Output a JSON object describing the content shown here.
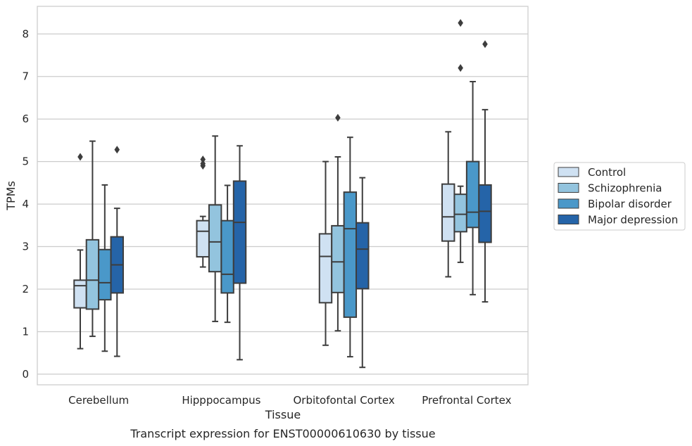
{
  "chart_data": {
    "type": "box",
    "xlabel": "Tissue",
    "ylabel": "TPMs",
    "caption": "Transcript expression for ENST00000610630 by tissue",
    "ylim": [
      -0.25,
      8.65
    ],
    "yticks": [
      "0",
      "1",
      "2",
      "3",
      "4",
      "5",
      "6",
      "7",
      "8"
    ],
    "grid": "horizontal",
    "legend_position": "right",
    "categories": [
      "Cerebellum",
      "Hipppocampus",
      "Orbitofontal Cortex",
      "Prefrontal Cortex"
    ],
    "series": [
      {
        "name": "Control",
        "color": "#cfe1f2",
        "boxes": [
          {
            "whisker_low": 0.6,
            "q1": 1.56,
            "median": 2.08,
            "q3": 2.21,
            "whisker_high": 2.92,
            "outliers": [
              5.11
            ]
          },
          {
            "whisker_low": 2.52,
            "q1": 2.76,
            "median": 3.36,
            "q3": 3.61,
            "whisker_high": 3.71,
            "outliers": [
              4.9,
              4.95,
              5.05
            ]
          },
          {
            "whisker_low": 0.68,
            "q1": 1.68,
            "median": 2.77,
            "q3": 3.3,
            "whisker_high": 5.0,
            "outliers": []
          },
          {
            "whisker_low": 2.29,
            "q1": 3.13,
            "median": 3.7,
            "q3": 4.47,
            "whisker_high": 5.7,
            "outliers": []
          }
        ]
      },
      {
        "name": "Schizophrenia",
        "color": "#93c4de",
        "boxes": [
          {
            "whisker_low": 0.89,
            "q1": 1.53,
            "median": 2.21,
            "q3": 3.16,
            "whisker_high": 5.48,
            "outliers": []
          },
          {
            "whisker_low": 1.24,
            "q1": 2.41,
            "median": 3.11,
            "q3": 3.98,
            "whisker_high": 5.6,
            "outliers": []
          },
          {
            "whisker_low": 1.02,
            "q1": 1.92,
            "median": 2.64,
            "q3": 3.49,
            "whisker_high": 5.11,
            "outliers": [
              6.03
            ]
          },
          {
            "whisker_low": 2.63,
            "q1": 3.35,
            "median": 3.76,
            "q3": 4.23,
            "whisker_high": 4.42,
            "outliers": [
              7.2,
              8.26
            ]
          }
        ]
      },
      {
        "name": "Bipolar disorder",
        "color": "#4a98c9",
        "boxes": [
          {
            "whisker_low": 0.54,
            "q1": 1.75,
            "median": 2.15,
            "q3": 2.93,
            "whisker_high": 4.45,
            "outliers": []
          },
          {
            "whisker_low": 1.22,
            "q1": 1.91,
            "median": 2.35,
            "q3": 3.61,
            "whisker_high": 4.44,
            "outliers": []
          },
          {
            "whisker_low": 0.41,
            "q1": 1.34,
            "median": 3.42,
            "q3": 4.28,
            "whisker_high": 5.57,
            "outliers": []
          },
          {
            "whisker_low": 1.87,
            "q1": 3.45,
            "median": 3.81,
            "q3": 5.0,
            "whisker_high": 6.88,
            "outliers": []
          }
        ]
      },
      {
        "name": "Major depression",
        "color": "#2564a8",
        "boxes": [
          {
            "whisker_low": 0.42,
            "q1": 1.91,
            "median": 2.57,
            "q3": 3.23,
            "whisker_high": 3.9,
            "outliers": [
              5.28
            ]
          },
          {
            "whisker_low": 0.34,
            "q1": 2.14,
            "median": 3.57,
            "q3": 4.54,
            "whisker_high": 5.37,
            "outliers": []
          },
          {
            "whisker_low": 0.16,
            "q1": 2.01,
            "median": 2.94,
            "q3": 3.56,
            "whisker_high": 4.62,
            "outliers": []
          },
          {
            "whisker_low": 1.7,
            "q1": 3.1,
            "median": 3.83,
            "q3": 4.45,
            "whisker_high": 6.22,
            "outliers": [
              7.76
            ]
          }
        ]
      }
    ]
  }
}
